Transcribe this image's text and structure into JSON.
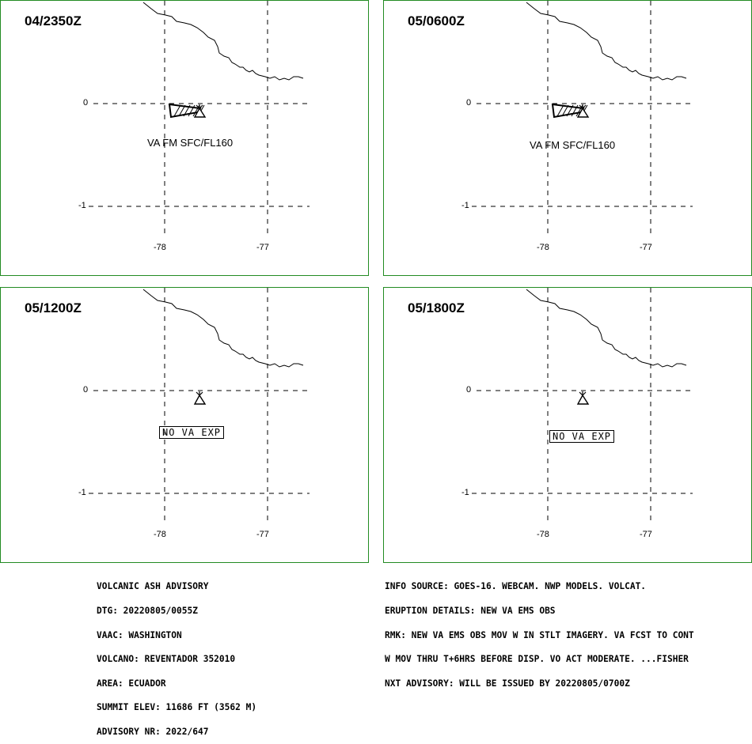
{
  "panels": [
    {
      "time": "04/2350Z",
      "lat_labels": [
        "0",
        "-1"
      ],
      "lon_labels": [
        "-78",
        "-77"
      ],
      "va_label": "VA FM SFC/FL160",
      "no_va": ""
    },
    {
      "time": "05/0600Z",
      "lat_labels": [
        "0",
        "-1"
      ],
      "lon_labels": [
        "-78",
        "-77"
      ],
      "va_label": "VA FM SFC/FL160",
      "no_va": ""
    },
    {
      "time": "05/1200Z",
      "lat_labels": [
        "0",
        "-1"
      ],
      "lon_labels": [
        "-78",
        "-77"
      ],
      "va_label": "",
      "no_va": "NO VA EXP"
    },
    {
      "time": "05/1800Z",
      "lat_labels": [
        "0",
        "-1"
      ],
      "lon_labels": [
        "-78",
        "-77"
      ],
      "va_label": "",
      "no_va": "NO VA EXP"
    }
  ],
  "advisory_left": [
    "VOLCANIC ASH ADVISORY",
    "DTG: 20220805/0055Z",
    "VAAC: WASHINGTON",
    "VOLCANO: REVENTADOR 352010",
    "AREA: ECUADOR",
    "SUMMIT ELEV: 11686 FT (3562 M)",
    "ADVISORY NR: 2022/647"
  ],
  "advisory_right": [
    "INFO SOURCE: GOES-16. WEBCAM. NWP MODELS. VOLCAT.",
    "ERUPTION DETAILS: NEW VA EMS OBS",
    "RMK: NEW VA EMS OBS MOV W IN STLT IMAGERY. VA FCST TO CONT",
    "W MOV THRU T+6HRS BEFORE DISP. VO ACT MODERATE. ...FISHER",
    "NXT ADVISORY: WILL BE ISSUED BY 20220805/0700Z"
  ],
  "colors": {
    "panel_border": "#228b22",
    "lines": "#000000"
  },
  "icons": {
    "volcano": "volcano-icon",
    "ash_polygon": "ash-polygon"
  }
}
